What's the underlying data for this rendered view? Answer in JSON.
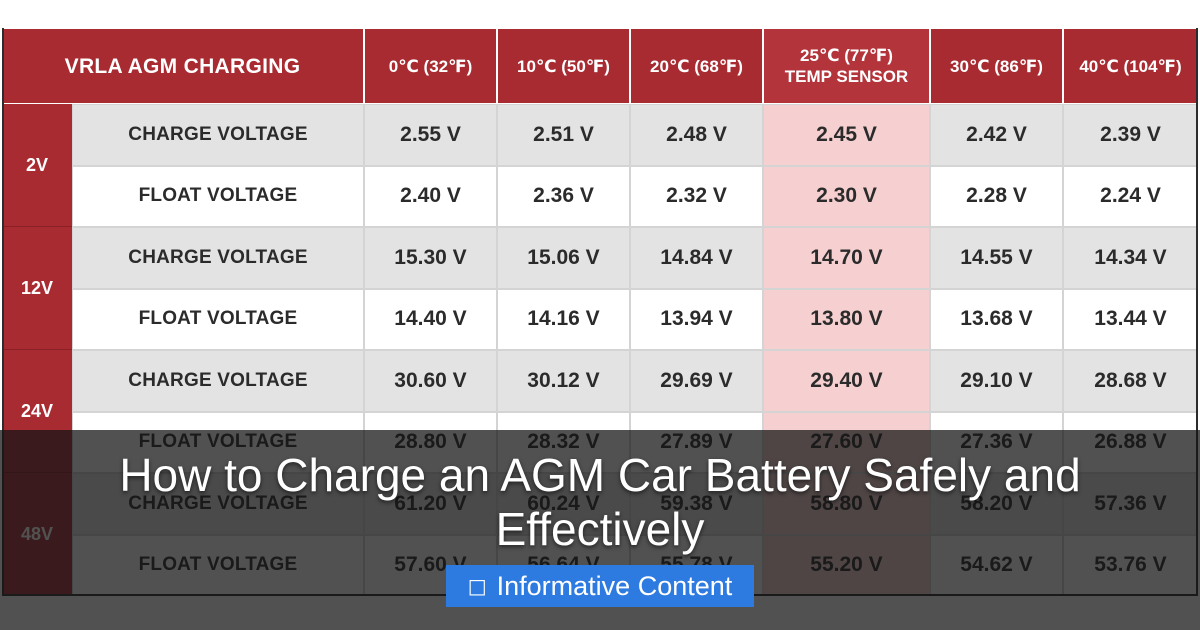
{
  "table": {
    "title": "VRLA AGM CHARGING",
    "columns": [
      {
        "text": "0℃ (32℉)",
        "highlight": false
      },
      {
        "text": "10℃ (50℉)",
        "highlight": false
      },
      {
        "text": "20℃ (68℉)",
        "highlight": false
      },
      {
        "text": "25℃ (77℉)\nTEMP SENSOR",
        "highlight": true
      },
      {
        "text": "30℃ (86℉)",
        "highlight": false
      },
      {
        "text": "40℃ (104℉)",
        "highlight": false
      }
    ],
    "groups": [
      {
        "label": "2V",
        "rows": [
          {
            "label": "CHARGE VOLTAGE",
            "values": [
              "2.55 V",
              "2.51 V",
              "2.48 V",
              "2.45 V",
              "2.42 V",
              "2.39 V"
            ]
          },
          {
            "label": "FLOAT VOLTAGE",
            "values": [
              "2.40 V",
              "2.36 V",
              "2.32 V",
              "2.30 V",
              "2.28 V",
              "2.24 V"
            ]
          }
        ]
      },
      {
        "label": "12V",
        "rows": [
          {
            "label": "CHARGE VOLTAGE",
            "values": [
              "15.30 V",
              "15.06 V",
              "14.84 V",
              "14.70 V",
              "14.55 V",
              "14.34 V"
            ]
          },
          {
            "label": "FLOAT VOLTAGE",
            "values": [
              "14.40 V",
              "14.16 V",
              "13.94 V",
              "13.80 V",
              "13.68 V",
              "13.44 V"
            ]
          }
        ]
      },
      {
        "label": "24V",
        "rows": [
          {
            "label": "CHARGE VOLTAGE",
            "values": [
              "30.60 V",
              "30.12 V",
              "29.69 V",
              "29.40 V",
              "29.10 V",
              "28.68 V"
            ]
          },
          {
            "label": "FLOAT VOLTAGE",
            "values": [
              "28.80 V",
              "28.32 V",
              "27.89 V",
              "27.60 V",
              "27.36 V",
              "26.88 V"
            ]
          }
        ]
      },
      {
        "label": "48V",
        "rows": [
          {
            "label": "CHARGE VOLTAGE",
            "values": [
              "61.20 V",
              "60.24 V",
              "59.38 V",
              "58.80 V",
              "58.20 V",
              "57.36 V"
            ]
          },
          {
            "label": "FLOAT VOLTAGE",
            "values": [
              "57.60 V",
              "56.64 V",
              "55.78 V",
              "55.20 V",
              "54.62 V",
              "53.76 V"
            ]
          }
        ]
      }
    ]
  },
  "overlay": {
    "headline": "How to Charge an AGM Car Battery Safely and Effectively",
    "badge_icon": "□",
    "badge_label": "Informative Content"
  },
  "colors": {
    "header_red": "#a82b32",
    "highlight_pink": "#f6d0d0",
    "charge_row_grey": "#e3e3e3",
    "badge_blue": "#2d7be0"
  }
}
